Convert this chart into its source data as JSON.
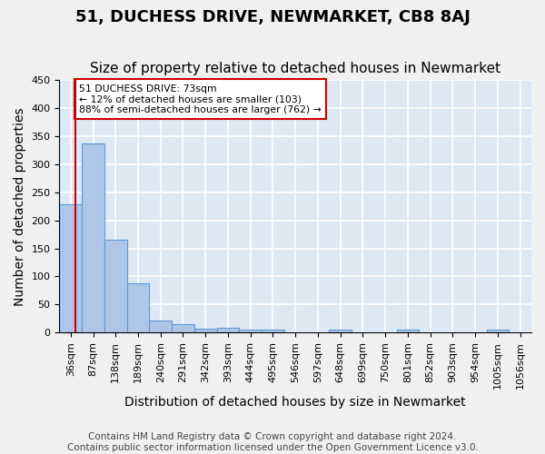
{
  "title": "51, DUCHESS DRIVE, NEWMARKET, CB8 8AJ",
  "subtitle": "Size of property relative to detached houses in Newmarket",
  "xlabel": "Distribution of detached houses by size in Newmarket",
  "ylabel": "Number of detached properties",
  "bar_values": [
    228,
    337,
    165,
    88,
    21,
    15,
    7,
    8,
    5,
    5,
    0,
    0,
    5,
    0,
    0,
    5,
    0,
    0,
    0,
    5,
    0
  ],
  "bar_labels": [
    "36sqm",
    "87sqm",
    "138sqm",
    "189sqm",
    "240sqm",
    "291sqm",
    "342sqm",
    "393sqm",
    "444sqm",
    "495sqm",
    "546sqm",
    "597sqm",
    "648sqm",
    "699sqm",
    "750sqm",
    "801sqm",
    "852sqm",
    "903sqm",
    "954sqm",
    "1005sqm",
    "1056sqm"
  ],
  "bar_color": "#aec6e8",
  "bar_edge_color": "#5b9bd5",
  "background_color": "#dde8f5",
  "grid_color": "#ffffff",
  "vline_color": "#cc0000",
  "annotation_text": "51 DUCHESS DRIVE: 73sqm\n← 12% of detached houses are smaller (103)\n88% of semi-detached houses are larger (762) →",
  "annotation_box_color": "#ffffff",
  "annotation_edge_color": "#cc0000",
  "ylim": [
    0,
    450
  ],
  "yticks": [
    0,
    50,
    100,
    150,
    200,
    250,
    300,
    350,
    400,
    450
  ],
  "footer": "Contains HM Land Registry data © Crown copyright and database right 2024.\nContains public sector information licensed under the Open Government Licence v3.0.",
  "title_fontsize": 13,
  "subtitle_fontsize": 11,
  "xlabel_fontsize": 10,
  "ylabel_fontsize": 10,
  "tick_fontsize": 8,
  "footer_fontsize": 7.5
}
